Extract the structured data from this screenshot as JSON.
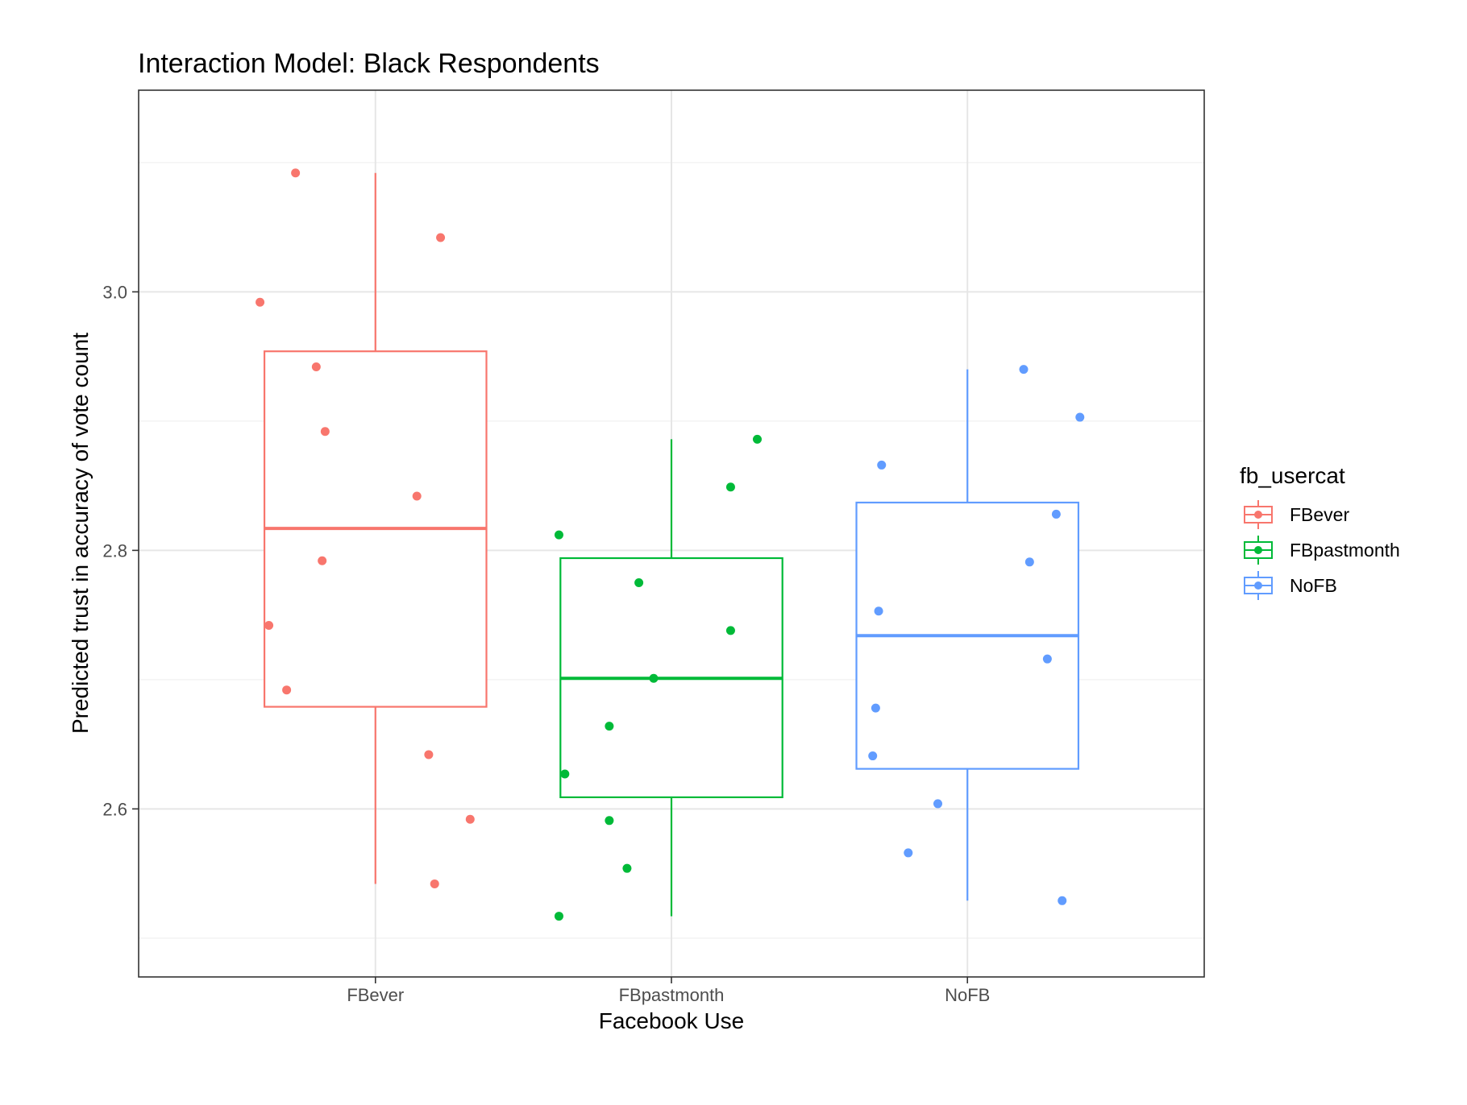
{
  "chart_data": {
    "type": "box",
    "title": "Interaction Model: Black Respondents",
    "xlabel": "Facebook Use",
    "ylabel": "Predicted trust in accuracy of vote count",
    "categories": [
      "FBever",
      "FBpastmonth",
      "NoFB"
    ],
    "ylim": [
      2.47,
      3.156
    ],
    "yticks": [
      2.6,
      2.8,
      3.0
    ],
    "ytick_labels": [
      "2.6",
      "2.8",
      "3.0"
    ],
    "grid": true,
    "legend": {
      "title": "fb_usercat",
      "position": "right",
      "entries": [
        "FBever",
        "FBpastmonth",
        "NoFB"
      ]
    },
    "series": [
      {
        "name": "FBever",
        "color": "#F8766D",
        "box": {
          "min": 2.542,
          "q1": 2.679,
          "median": 2.817,
          "q3": 2.954,
          "max": 3.092
        },
        "points": [
          {
            "x": -0.39,
            "y": 2.992
          },
          {
            "x": -0.27,
            "y": 3.092
          },
          {
            "x": 0.22,
            "y": 3.042
          },
          {
            "x": -0.2,
            "y": 2.942
          },
          {
            "x": -0.17,
            "y": 2.892
          },
          {
            "x": 0.14,
            "y": 2.842
          },
          {
            "x": -0.18,
            "y": 2.792
          },
          {
            "x": -0.36,
            "y": 2.742
          },
          {
            "x": -0.3,
            "y": 2.692
          },
          {
            "x": 0.18,
            "y": 2.642
          },
          {
            "x": 0.32,
            "y": 2.592
          },
          {
            "x": 0.2,
            "y": 2.542
          }
        ]
      },
      {
        "name": "FBpastmonth",
        "color": "#00BA38",
        "box": {
          "min": 2.517,
          "q1": 2.609,
          "median": 2.701,
          "q3": 2.794,
          "max": 2.886
        },
        "points": [
          {
            "x": 0.29,
            "y": 2.886
          },
          {
            "x": 0.2,
            "y": 2.849
          },
          {
            "x": -0.38,
            "y": 2.812
          },
          {
            "x": -0.11,
            "y": 2.775
          },
          {
            "x": 0.2,
            "y": 2.738
          },
          {
            "x": -0.06,
            "y": 2.701
          },
          {
            "x": -0.21,
            "y": 2.664
          },
          {
            "x": -0.36,
            "y": 2.627
          },
          {
            "x": -0.21,
            "y": 2.591
          },
          {
            "x": -0.15,
            "y": 2.554
          },
          {
            "x": -0.38,
            "y": 2.517
          }
        ]
      },
      {
        "name": "NoFB",
        "color": "#619CFF",
        "box": {
          "min": 2.529,
          "q1": 2.631,
          "median": 2.734,
          "q3": 2.837,
          "max": 2.94
        },
        "points": [
          {
            "x": 0.19,
            "y": 2.94
          },
          {
            "x": 0.38,
            "y": 2.903
          },
          {
            "x": -0.29,
            "y": 2.866
          },
          {
            "x": 0.3,
            "y": 2.828
          },
          {
            "x": 0.21,
            "y": 2.791
          },
          {
            "x": -0.3,
            "y": 2.753
          },
          {
            "x": 0.27,
            "y": 2.716
          },
          {
            "x": -0.31,
            "y": 2.678
          },
          {
            "x": -0.32,
            "y": 2.641
          },
          {
            "x": -0.1,
            "y": 2.604
          },
          {
            "x": -0.2,
            "y": 2.566
          },
          {
            "x": 0.32,
            "y": 2.529
          }
        ]
      }
    ]
  }
}
